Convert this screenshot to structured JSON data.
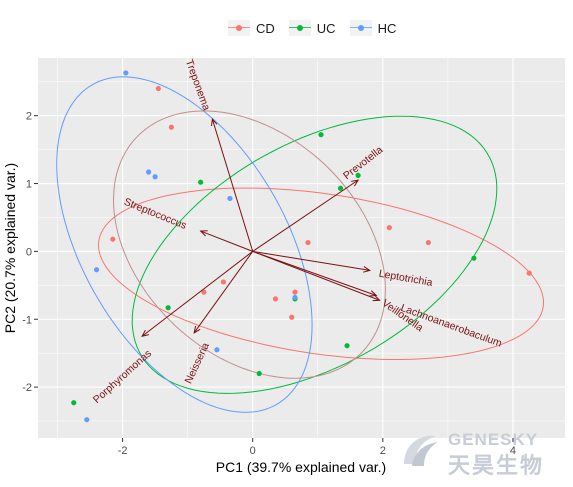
{
  "chart_data": {
    "type": "scatter",
    "xlabel": "PC1 (39.7% explained var.)",
    "ylabel": "PC2 (20.7% explained var.)",
    "xlim": [
      -3.3,
      4.8
    ],
    "ylim": [
      -2.75,
      2.85
    ],
    "xticks": [
      -2,
      0,
      2,
      4
    ],
    "yticks": [
      -2,
      -1,
      0,
      1,
      2
    ],
    "grid": true,
    "legend_position": "top",
    "series": [
      {
        "name": "CD",
        "color": "#F8766D",
        "points": [
          [
            -1.45,
            2.4
          ],
          [
            -1.25,
            1.83
          ],
          [
            -2.15,
            0.18
          ],
          [
            -0.45,
            -0.45
          ],
          [
            -0.75,
            -0.6
          ],
          [
            0.35,
            -0.7
          ],
          [
            0.65,
            -0.6
          ],
          [
            0.6,
            -0.97
          ],
          [
            0.85,
            0.13
          ],
          [
            2.1,
            0.35
          ],
          [
            2.7,
            0.13
          ],
          [
            4.25,
            -0.32
          ]
        ],
        "ellipse": {
          "cx": 1.05,
          "cy": -0.33,
          "rx": 3.45,
          "ry": 1.18,
          "angle_deg": -8
        }
      },
      {
        "name": "UC",
        "color": "#00BA38",
        "points": [
          [
            -0.8,
            1.02
          ],
          [
            -1.3,
            -0.83
          ],
          [
            -2.75,
            -2.23
          ],
          [
            0.1,
            -1.8
          ],
          [
            0.65,
            -0.7
          ],
          [
            1.05,
            1.72
          ],
          [
            1.35,
            0.93
          ],
          [
            1.62,
            1.12
          ],
          [
            1.45,
            -1.39
          ],
          [
            3.4,
            -0.1
          ]
        ],
        "ellipse": {
          "cx": 0.95,
          "cy": -0.05,
          "rx": 3.05,
          "ry": 1.65,
          "angle_deg": 28
        }
      },
      {
        "name": "HC",
        "color": "#619CFF",
        "points": [
          [
            -1.95,
            2.63
          ],
          [
            -1.6,
            1.17
          ],
          [
            -1.5,
            1.1
          ],
          [
            -0.35,
            0.78
          ],
          [
            -2.4,
            -0.27
          ],
          [
            -0.55,
            -1.45
          ],
          [
            -2.55,
            -2.48
          ],
          [
            0.65,
            -0.68
          ]
        ],
        "ellipse": {
          "cx": -1.05,
          "cy": 0.1,
          "rx": 2.75,
          "ry": 1.55,
          "angle_deg": -58
        }
      }
    ],
    "ellipse_extra": {
      "cx": -0.05,
      "cy": 0.1,
      "rx": 2.35,
      "ry": 1.65,
      "angle_deg": -40,
      "color": "#C28E8E"
    },
    "arrow_color": "#7B1010",
    "loadings": [
      {
        "label": "Treponema",
        "x": -0.62,
        "y": 1.95
      },
      {
        "label": "Prevotella",
        "x": 1.62,
        "y": 1.05
      },
      {
        "label": "Streptococcus",
        "x": -0.8,
        "y": 0.3
      },
      {
        "label": "Leptotrichia",
        "x": 1.8,
        "y": -0.28
      },
      {
        "label": "Lachnoanaerobaculum",
        "x": 1.9,
        "y": -0.65
      },
      {
        "label": "Veillonella",
        "x": 1.95,
        "y": -0.72
      },
      {
        "label": "Neisseria",
        "x": -0.9,
        "y": -1.2
      },
      {
        "label": "Porphyromonas",
        "x": -1.7,
        "y": -1.25
      }
    ],
    "loading_labels": [
      {
        "label": "Treponema",
        "x": -0.85,
        "y": 2.45,
        "angle": 70
      },
      {
        "label": "Prevotella",
        "x": 1.7,
        "y": 1.3,
        "angle": -38
      },
      {
        "label": "Streptococcus",
        "x": -1.5,
        "y": 0.55,
        "angle": 22
      },
      {
        "label": "Leptotrichia",
        "x": 2.35,
        "y": -0.4,
        "angle": 10
      },
      {
        "label": "Lachnoanaerobaculum",
        "x": 3.05,
        "y": -1.1,
        "angle": 20
      },
      {
        "label": "Veillonella",
        "x": 2.3,
        "y": -0.95,
        "angle": 35
      },
      {
        "label": "Neisseria",
        "x": -0.85,
        "y": -1.65,
        "angle": -65
      },
      {
        "label": "Porphyromonas",
        "x": -2.0,
        "y": -1.85,
        "angle": -42
      }
    ]
  },
  "watermark": {
    "en": "GENESKY",
    "cn": "天昊生物"
  }
}
